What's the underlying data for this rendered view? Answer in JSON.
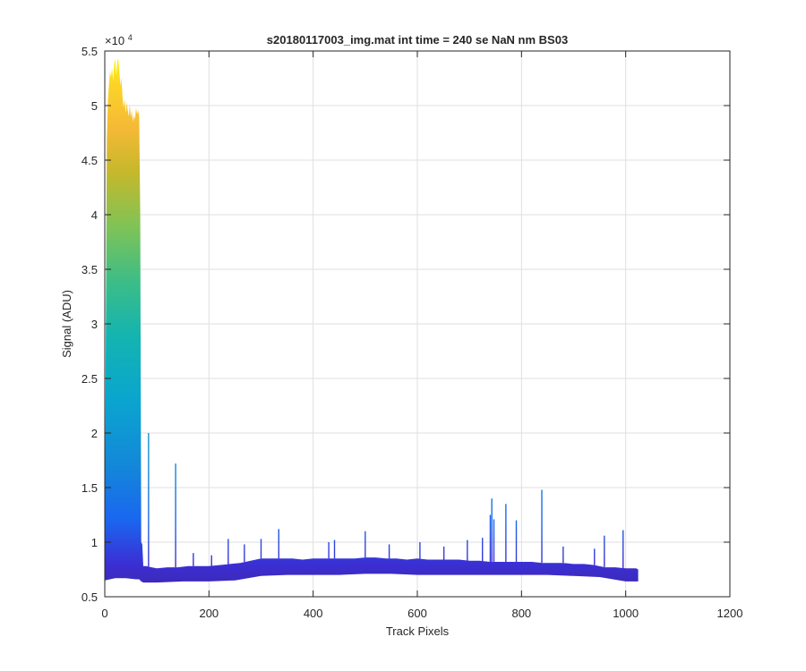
{
  "chart_data": {
    "type": "line",
    "title": "s20180117003_img.mat int time = 240 se  NaN nm BS03",
    "xlabel": "Track Pixels",
    "ylabel": "Signal (ADU)",
    "xlim": [
      0,
      1200
    ],
    "ylim": [
      5000,
      55000
    ],
    "x_ticks": [
      0,
      200,
      400,
      600,
      800,
      1000,
      1200
    ],
    "x_tick_labels": [
      "0",
      "200",
      "400",
      "600",
      "800",
      "1000",
      "1200"
    ],
    "y_ticks": [
      5000,
      10000,
      15000,
      20000,
      25000,
      30000,
      35000,
      40000,
      45000,
      50000,
      55000
    ],
    "y_tick_labels": [
      "0.5",
      "1",
      "1.5",
      "2",
      "2.5",
      "3",
      "3.5",
      "4",
      "4.5",
      "5",
      "5.5"
    ],
    "y_exponent_label": "×10",
    "y_exponent_power": "4",
    "grid": true,
    "colormap": "parula",
    "series": [
      {
        "envelope_upper": {
          "x": [
            0,
            2,
            4,
            6,
            8,
            10,
            12,
            14,
            16,
            18,
            20,
            22,
            24,
            26,
            28,
            30,
            32,
            34,
            36,
            38,
            40,
            42,
            44,
            46,
            48,
            50,
            52,
            54,
            56,
            58,
            60,
            62,
            64,
            66,
            68,
            70,
            72,
            74,
            80,
            90,
            100,
            120,
            140,
            160,
            180,
            200,
            220,
            240,
            260,
            280,
            300,
            320,
            340,
            360,
            380,
            400,
            420,
            440,
            460,
            480,
            500,
            520,
            540,
            560,
            580,
            600,
            620,
            640,
            660,
            680,
            700,
            720,
            740,
            760,
            780,
            800,
            820,
            840,
            860,
            880,
            900,
            920,
            940,
            960,
            980,
            1000,
            1010,
            1020,
            1024
          ],
          "y": [
            9000,
            30000,
            47000,
            50500,
            52000,
            53200,
            52600,
            53500,
            52300,
            53800,
            54300,
            52800,
            54100,
            54300,
            53200,
            51800,
            52600,
            50800,
            49800,
            50600,
            49300,
            50300,
            49600,
            49000,
            50100,
            48900,
            49600,
            48500,
            49100,
            48700,
            49800,
            49200,
            49600,
            49000,
            40000,
            10000,
            9800,
            7800,
            7800,
            7700,
            7600,
            7700,
            7700,
            7800,
            7800,
            7800,
            7900,
            8000,
            8100,
            8300,
            8500,
            8500,
            8500,
            8500,
            8400,
            8500,
            8500,
            8500,
            8500,
            8500,
            8600,
            8600,
            8500,
            8500,
            8400,
            8500,
            8400,
            8400,
            8400,
            8400,
            8300,
            8300,
            8200,
            8200,
            8200,
            8200,
            8200,
            8100,
            8100,
            8100,
            8000,
            8000,
            7900,
            7700,
            7700,
            7600,
            7600,
            7600,
            7500
          ]
        },
        "envelope_lower": {
          "x": [
            0,
            20,
            40,
            60,
            66,
            70,
            74,
            80,
            100,
            150,
            200,
            250,
            300,
            350,
            400,
            450,
            500,
            550,
            600,
            650,
            700,
            750,
            800,
            850,
            900,
            950,
            1000,
            1024
          ],
          "y": [
            6500,
            6700,
            6700,
            6600,
            6600,
            6400,
            6300,
            6300,
            6300,
            6400,
            6400,
            6500,
            6900,
            7000,
            7000,
            7000,
            7100,
            7100,
            7000,
            7000,
            7000,
            7000,
            7000,
            7000,
            6900,
            6800,
            6400,
            6400
          ]
        },
        "spikes": [
          {
            "x": 84,
            "y": 20000
          },
          {
            "x": 136,
            "y": 17200
          },
          {
            "x": 170,
            "y": 9000
          },
          {
            "x": 205,
            "y": 8800
          },
          {
            "x": 237,
            "y": 10300
          },
          {
            "x": 268,
            "y": 9800
          },
          {
            "x": 300,
            "y": 10300
          },
          {
            "x": 334,
            "y": 11200
          },
          {
            "x": 430,
            "y": 10000
          },
          {
            "x": 441,
            "y": 10200
          },
          {
            "x": 500,
            "y": 11000
          },
          {
            "x": 546,
            "y": 9800
          },
          {
            "x": 605,
            "y": 10000
          },
          {
            "x": 651,
            "y": 9600
          },
          {
            "x": 696,
            "y": 10200
          },
          {
            "x": 725,
            "y": 10400
          },
          {
            "x": 740,
            "y": 12500
          },
          {
            "x": 743,
            "y": 14000
          },
          {
            "x": 747,
            "y": 12100
          },
          {
            "x": 770,
            "y": 13500
          },
          {
            "x": 790,
            "y": 12000
          },
          {
            "x": 839,
            "y": 14800
          },
          {
            "x": 880,
            "y": 9600
          },
          {
            "x": 940,
            "y": 9400
          },
          {
            "x": 959,
            "y": 10600
          },
          {
            "x": 995,
            "y": 11100
          }
        ]
      }
    ]
  }
}
